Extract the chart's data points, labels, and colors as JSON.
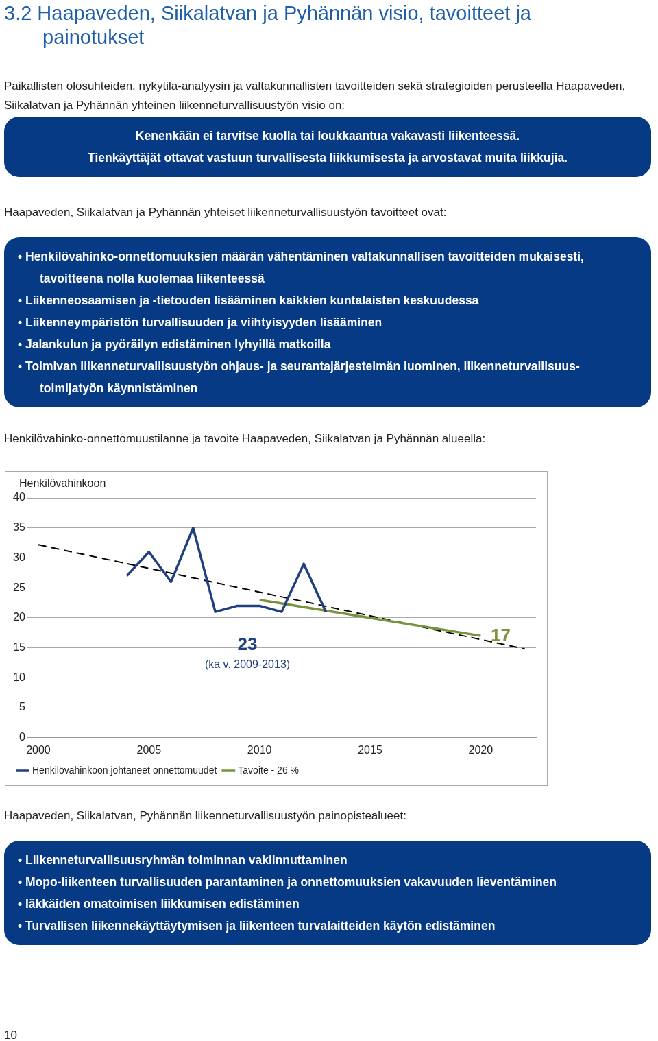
{
  "chart_data": [
    {
      "type": "other",
      "title": "3.2 Haapaveden, Siikalatvan ja Pyhännän visio, tavoitteet ja painotukset",
      "annotations": [
        "Paikallisten olosuhteiden, nykytila-analyysin ja valtakunnallisten tavoitteiden sekä strategioiden perusteella Haapaveden, Siikalatvan ja Pyhännän yhteinen liikenneturvallisuustyön visio on:"
      ]
    },
    {
      "type": "other",
      "annotations": [
        "Kenenkään ei tarvitse kuolla tai loukkaantua vakavasti liikenteessä.",
        "Tienkäyttäjät ottavat vastuun turvallisesta liikkumisesta ja arvostavat muita liikkujia."
      ]
    },
    {
      "type": "other",
      "title": "Haapaveden, Siikalatvan ja Pyhännän yhteiset liikenneturvallisuustyön tavoitteet ovat:",
      "annotations": [
        "• Henkilövahinko-onnettomuuksien määrän vähentäminen valtakunnallisen tavoitteiden mukaisesti, tavoitteena nolla kuolemaa liikenteessä",
        "• Liikenneosaamisen ja -tietouden lisääminen kaikkien kuntalaisten keskuudessa",
        "• Liikenneympäristön turvallisuuden ja viihtyisyyden lisääminen",
        "• Jalankulun ja pyöräilyn edistäminen lyhyillä matkoilla",
        "• Toimivan liikenneturvallisuustyön ohjaus- ja seurantajärjestelmän luominen, liikenneturvallisuus-toimijatyön käynnistäminen"
      ]
    },
    {
      "type": "line",
      "title": "Henkilövahinko-onnettomuustilanne ja tavoite Haapaveden, Siikalatvan ja Pyhännän alueella:",
      "ylabel": "Henkilövahinkoon",
      "xlim": [
        1999.5,
        2022.5
      ],
      "xticks": [
        2000,
        2005,
        2010,
        2015,
        2020
      ],
      "ylim": [
        0,
        40
      ],
      "yticks": [
        0,
        5,
        10,
        15,
        20,
        25,
        30,
        35,
        40
      ],
      "grid": "y",
      "legend": "bottom",
      "marker": "none",
      "series": [
        {
          "name": "Henkilövahinkoon johtaneet onnettomuudet",
          "color": "#1f3f7f",
          "x": [
            2004,
            2005,
            2006,
            2007,
            2008,
            2009,
            2010,
            2011,
            2012,
            2013
          ],
          "values": [
            27,
            31,
            26,
            35,
            21,
            22,
            22,
            21,
            29,
            21
          ]
        },
        {
          "name": "Tavoite - 26 %",
          "color": "#77933c",
          "x": [
            2010,
            2020
          ],
          "values": [
            23,
            17
          ]
        },
        {
          "color": "#000000",
          "line_style": "dashed",
          "x": [
            2000,
            2022
          ],
          "values": [
            32.2,
            14.8
          ]
        }
      ],
      "annotations": [
        "23",
        "(ka v. 2009-2013)",
        "17"
      ]
    },
    {
      "type": "other",
      "title": "Haapaveden, Siikalatvan, Pyhännän liikenneturvallisuustyön painopistealueet:",
      "annotations": [
        "• Liikenneturvallisuusryhmän toiminnan vakiinnuttaminen",
        "• Mopo-liikenteen turvallisuuden parantaminen ja onnettomuuksien vakavuuden lieventäminen",
        "• Iäkkäiden omatoimisen liikkumisen edistäminen",
        "• Turvallisen liikennekäyttäytymisen ja liikenteen turvalaitteiden käytön edistäminen"
      ]
    },
    {
      "type": "other",
      "annotations": [
        "10"
      ]
    }
  ]
}
